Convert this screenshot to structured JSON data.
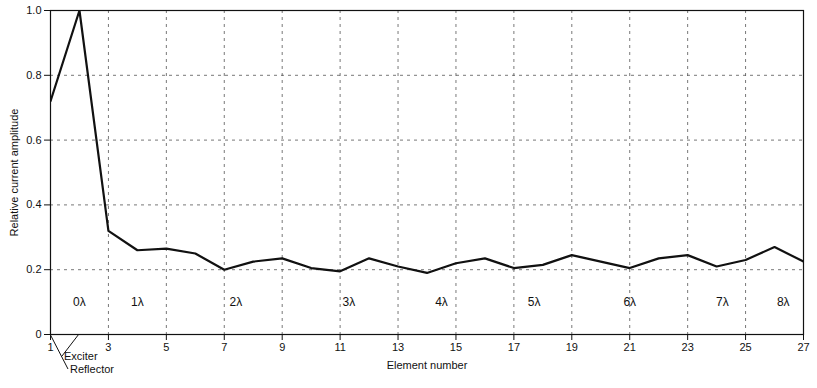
{
  "chart_data": {
    "type": "line",
    "x_label": "Element number",
    "y_label": "Relative current amplitude",
    "x": [
      1,
      2,
      3,
      4,
      5,
      6,
      7,
      8,
      9,
      10,
      11,
      12,
      13,
      14,
      15,
      16,
      17,
      18,
      19,
      20,
      21,
      22,
      23,
      24,
      25,
      26,
      27
    ],
    "values": [
      0.72,
      1.0,
      0.32,
      0.26,
      0.265,
      0.25,
      0.2,
      0.225,
      0.235,
      0.205,
      0.195,
      0.235,
      0.21,
      0.19,
      0.22,
      0.235,
      0.205,
      0.215,
      0.245,
      0.225,
      0.205,
      0.235,
      0.245,
      0.21,
      0.23,
      0.27,
      0.225
    ],
    "color": "#111111",
    "xlim": [
      1,
      27
    ],
    "xticks": [
      1,
      3,
      5,
      7,
      9,
      11,
      13,
      15,
      17,
      19,
      21,
      23,
      25,
      27
    ],
    "ylim": [
      0,
      1
    ],
    "yticks": [
      0,
      0.2,
      0.4,
      0.6,
      0.8,
      {
        "value": 1,
        "label": "1.0"
      }
    ],
    "grid": true,
    "annotations": [
      {
        "text": "0λ",
        "x": 2,
        "y": 0.1
      },
      {
        "text": "1λ",
        "x": 4,
        "y": 0.1
      },
      {
        "text": "2λ",
        "x": 7.4,
        "y": 0.1
      },
      {
        "text": "3λ",
        "x": 11.3,
        "y": 0.1
      },
      {
        "text": "4λ",
        "x": 14.5,
        "y": 0.1
      },
      {
        "text": "5λ",
        "x": 17.7,
        "y": 0.1
      },
      {
        "text": "6λ",
        "x": 21,
        "y": 0.1
      },
      {
        "text": "7λ",
        "x": 24.2,
        "y": 0.1
      },
      {
        "text": "8λ",
        "x": 26.3,
        "y": 0.1
      }
    ],
    "callouts": [
      {
        "text": "Exciter",
        "x": 2
      },
      {
        "text": "Reflector",
        "x": 1
      }
    ]
  }
}
